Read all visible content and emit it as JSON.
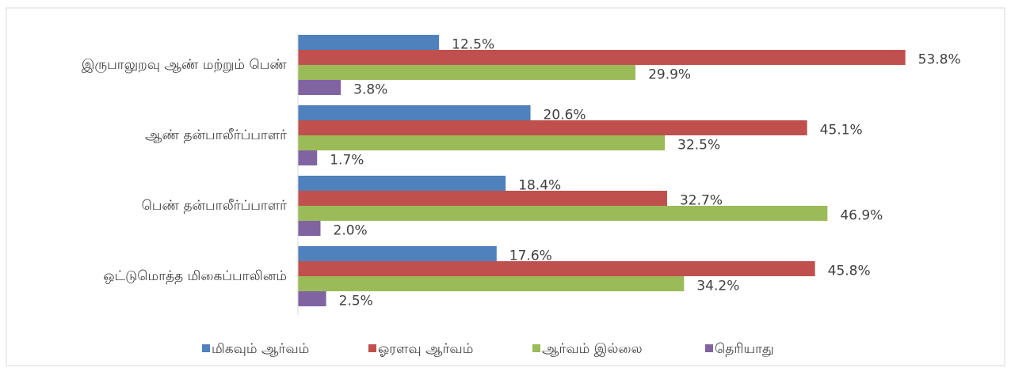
{
  "chart_data": {
    "type": "hbar",
    "categories": [
      "இருபாலுறவு ஆண் மற்றும் பெண்",
      "ஆண் தன்பாலீர்ப்பாளர்",
      "பெண் தன்பாலீர்ப்பாளர்",
      "ஒட்டுமொத்த மிகைப்பாலினம்"
    ],
    "series": [
      {
        "name": "மிகவும் ஆர்வம்",
        "color": "#4f81bd",
        "values": [
          12.5,
          20.6,
          18.4,
          17.6
        ],
        "value_labels": [
          "12.5%",
          "20.6%",
          "18.4%",
          "17.6%"
        ]
      },
      {
        "name": "ஓரளவு ஆர்வம்",
        "color": "#c0504d",
        "values": [
          53.8,
          45.1,
          32.7,
          45.8
        ],
        "value_labels": [
          "53.8%",
          "45.1%",
          "32.7%",
          "45.8%"
        ]
      },
      {
        "name": "ஆர்வம் இல்லை",
        "color": "#9bbb59",
        "values": [
          29.9,
          32.5,
          46.9,
          34.2
        ],
        "value_labels": [
          "29.9%",
          "32.5%",
          "46.9%",
          "34.2%"
        ]
      },
      {
        "name": "தெரியாது",
        "color": "#8064a2",
        "values": [
          3.8,
          1.7,
          2.0,
          2.5
        ],
        "value_labels": [
          "3.8%",
          "1.7%",
          "2.0%",
          "2.5%"
        ]
      }
    ],
    "xlim": [
      0,
      60
    ],
    "legend": "bottom"
  }
}
